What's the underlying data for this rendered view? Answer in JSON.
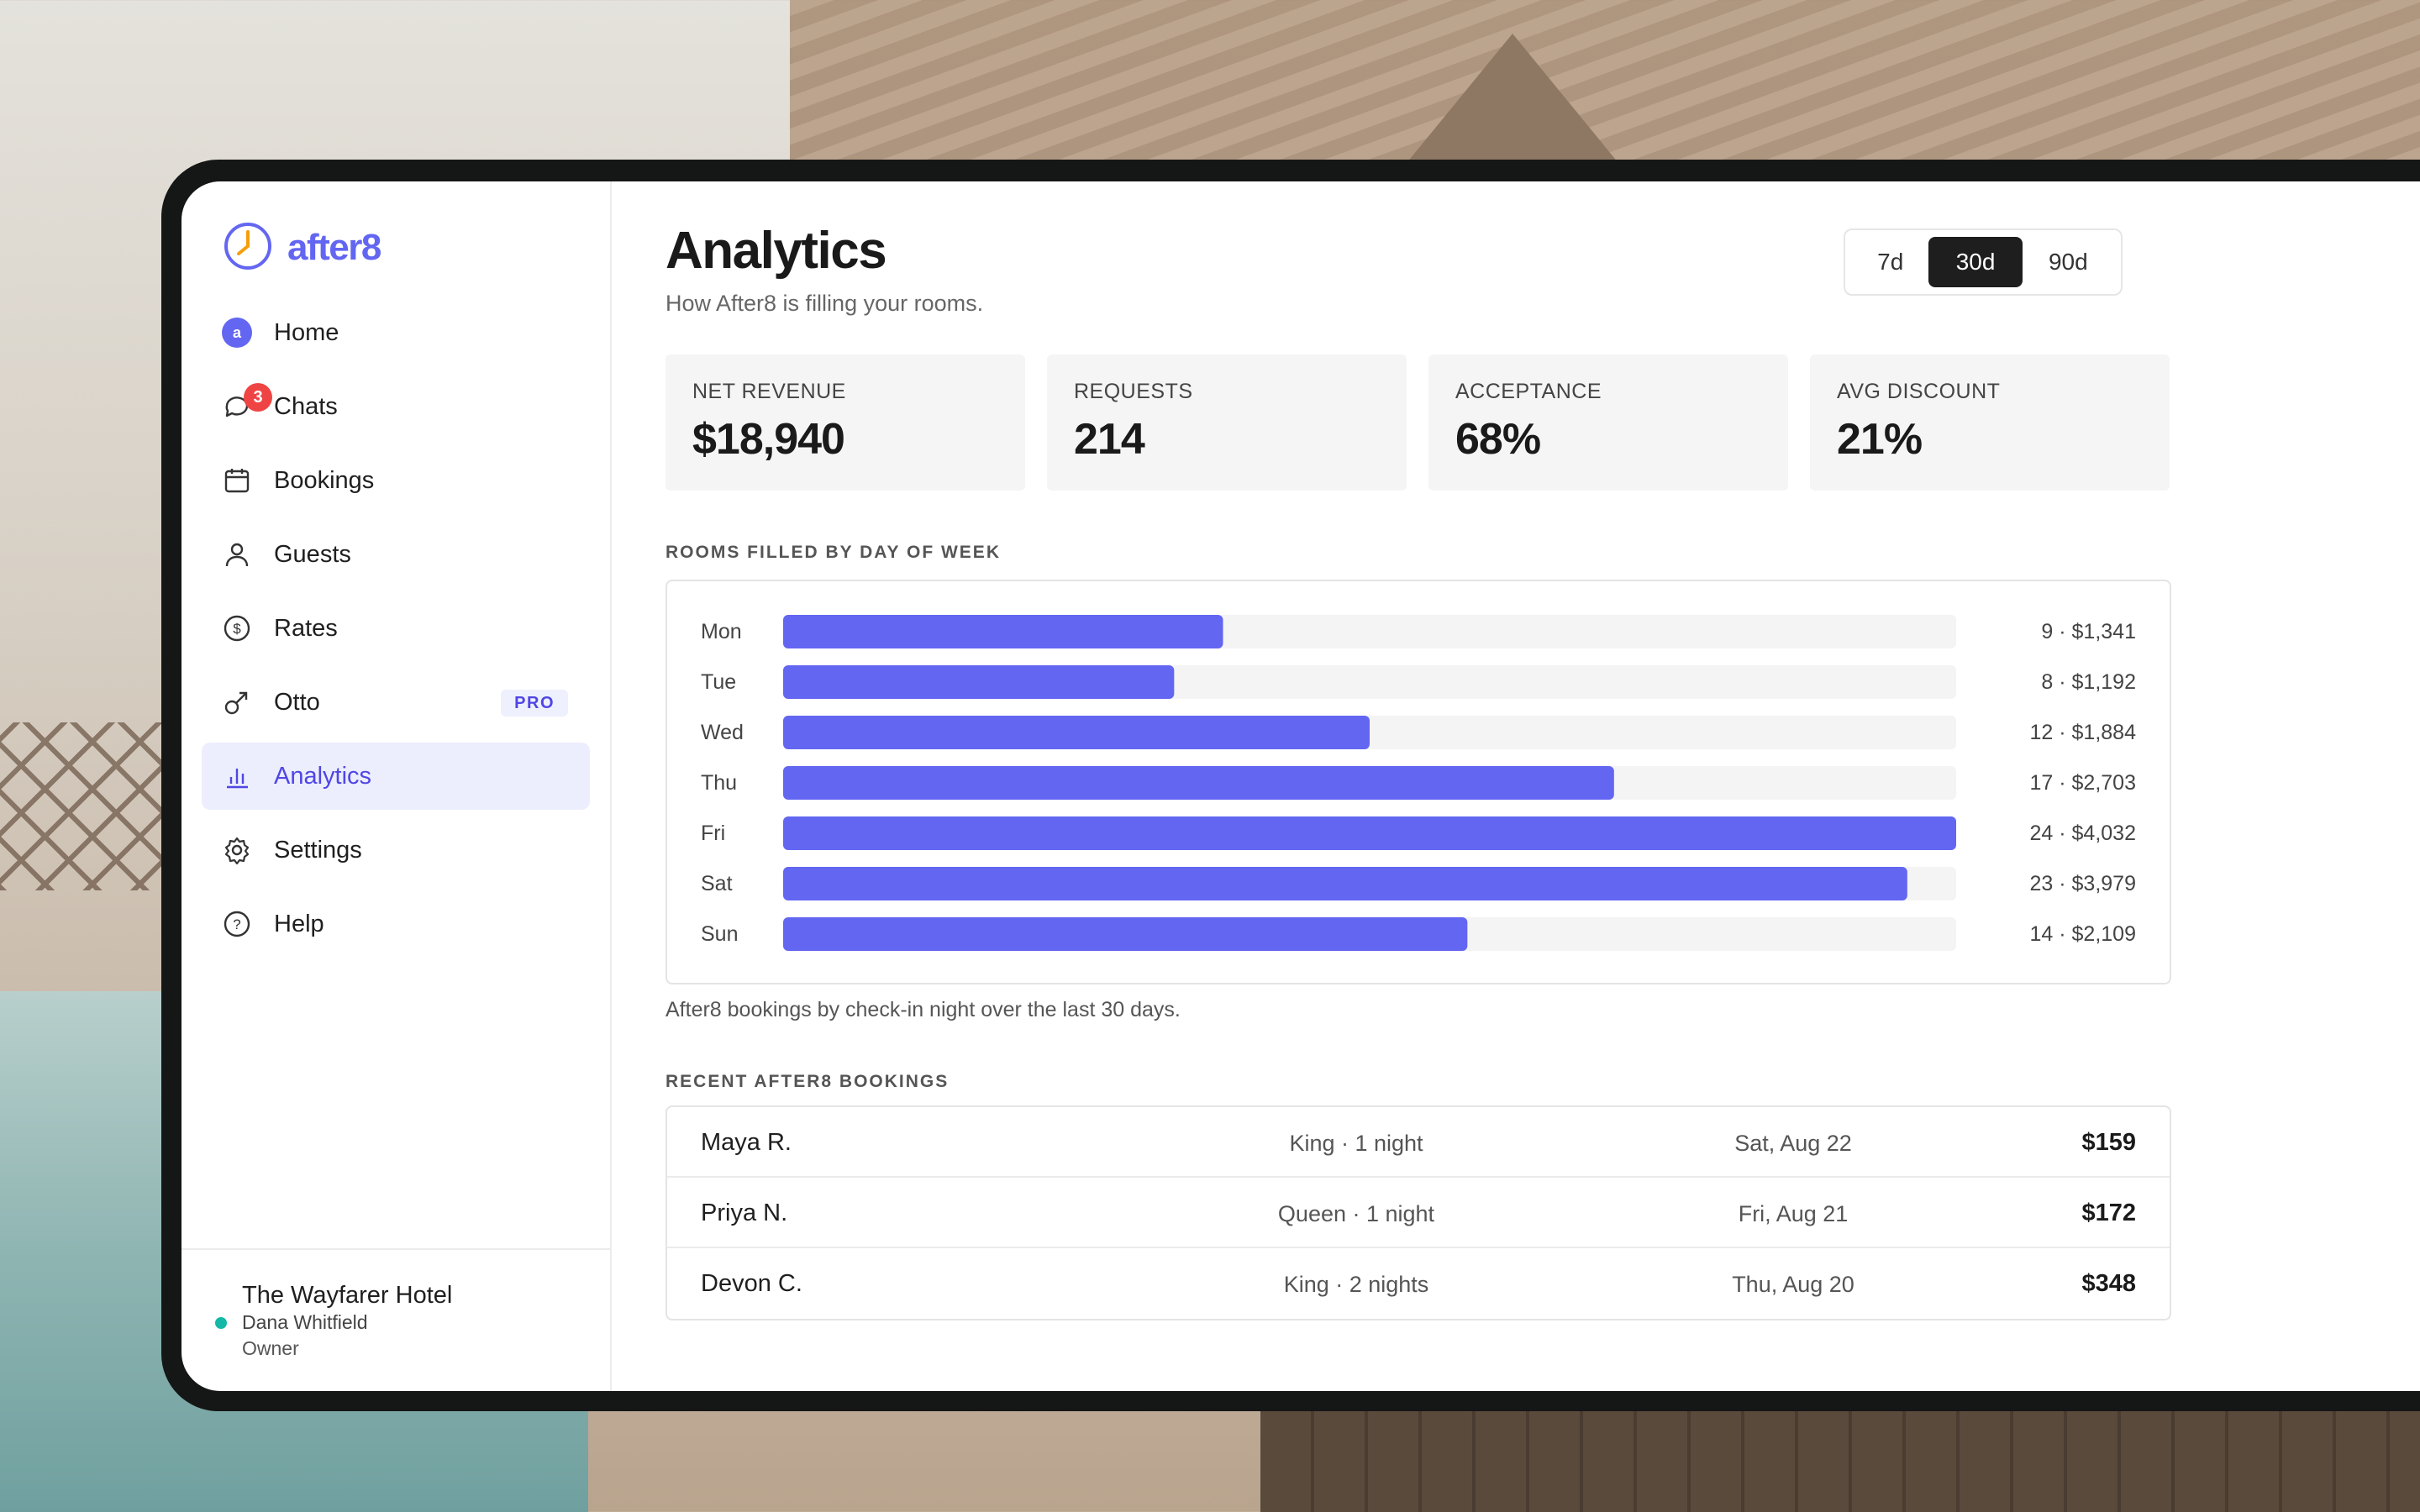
{
  "brand": {
    "name": "after8",
    "accent": "#6366f1"
  },
  "sidebar": {
    "items": [
      {
        "label": "Home",
        "icon": "avatar-icon"
      },
      {
        "label": "Chats",
        "icon": "chat-bubble-icon",
        "badge": "3"
      },
      {
        "label": "Bookings",
        "icon": "calendar-icon"
      },
      {
        "label": "Guests",
        "icon": "user-icon"
      },
      {
        "label": "Rates",
        "icon": "dollar-circle-icon"
      },
      {
        "label": "Otto",
        "icon": "otto-arrow-icon",
        "tag": "PRO"
      },
      {
        "label": "Analytics",
        "icon": "bar-chart-icon",
        "active": true
      },
      {
        "label": "Settings",
        "icon": "gear-icon"
      },
      {
        "label": "Help",
        "icon": "help-circle-icon"
      }
    ],
    "home_avatar_text": "a",
    "footer": {
      "hotel": "The Wayfarer Hotel",
      "owner": "Dana Whitfield",
      "role": "Owner",
      "status_color": "#14b8a6"
    }
  },
  "header": {
    "title": "Analytics",
    "subtitle": "How After8 is filling your rooms.",
    "ranges": [
      "7d",
      "30d",
      "90d"
    ],
    "active_range": "30d"
  },
  "stats": [
    {
      "label": "NET REVENUE",
      "value": "$18,940"
    },
    {
      "label": "REQUESTS",
      "value": "214"
    },
    {
      "label": "ACCEPTANCE",
      "value": "68%"
    },
    {
      "label": "AVG DISCOUNT",
      "value": "21%"
    }
  ],
  "rooms_section": {
    "title": "ROOMS FILLED BY DAY OF WEEK",
    "caption": "After8 bookings by check-in night over the last 30 days."
  },
  "chart_data": {
    "type": "bar",
    "orientation": "horizontal",
    "categories": [
      "Mon",
      "Tue",
      "Wed",
      "Thu",
      "Fri",
      "Sat",
      "Sun"
    ],
    "values": [
      9,
      8,
      12,
      17,
      24,
      23,
      14
    ],
    "value_labels": [
      "9 · $1,341",
      "8 · $1,192",
      "12 · $1,884",
      "17 · $2,703",
      "24 · $4,032",
      "23 · $3,979",
      "14 · $2,109"
    ],
    "xlim": [
      0,
      24
    ],
    "bar_color": "#6366f1",
    "track_color": "#f4f4f5"
  },
  "bookings_section": {
    "title": "RECENT AFTER8 BOOKINGS",
    "rows": [
      {
        "name": "Maya R.",
        "room": "King · 1 night",
        "date": "Sat, Aug 22",
        "amount": "$159"
      },
      {
        "name": "Priya N.",
        "room": "Queen · 1 night",
        "date": "Fri, Aug 21",
        "amount": "$172"
      },
      {
        "name": "Devon C.",
        "room": "King · 2 nights",
        "date": "Thu, Aug 20",
        "amount": "$348"
      }
    ]
  }
}
